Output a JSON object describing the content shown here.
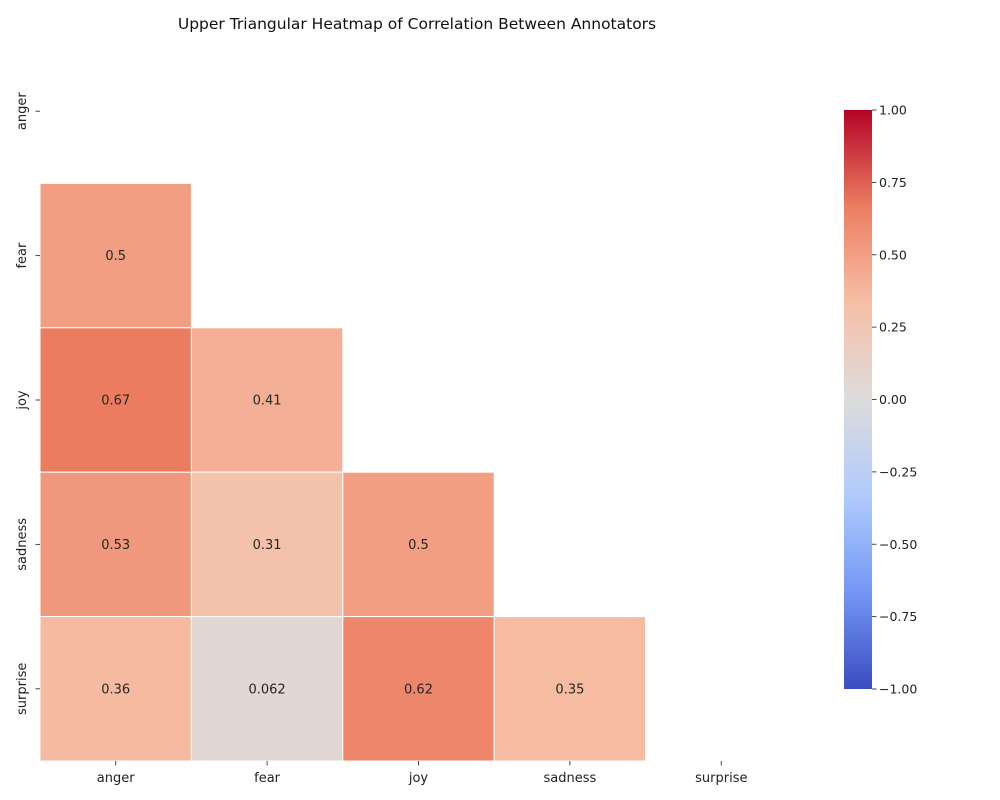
{
  "chart_data": {
    "type": "heatmap",
    "title": "Upper Triangular Heatmap of Correlation Between Annotators",
    "xlabel": "",
    "ylabel": "",
    "x_categories": [
      "anger",
      "fear",
      "joy",
      "sadness",
      "surprise"
    ],
    "y_categories": [
      "anger",
      "fear",
      "joy",
      "sadness",
      "surprise"
    ],
    "cells": [
      {
        "row": "fear",
        "col": "anger",
        "value": 0.5,
        "label": "0.5"
      },
      {
        "row": "joy",
        "col": "anger",
        "value": 0.67,
        "label": "0.67"
      },
      {
        "row": "joy",
        "col": "fear",
        "value": 0.41,
        "label": "0.41"
      },
      {
        "row": "sadness",
        "col": "anger",
        "value": 0.53,
        "label": "0.53"
      },
      {
        "row": "sadness",
        "col": "fear",
        "value": 0.31,
        "label": "0.31"
      },
      {
        "row": "sadness",
        "col": "joy",
        "value": 0.5,
        "label": "0.5"
      },
      {
        "row": "surprise",
        "col": "anger",
        "value": 0.36,
        "label": "0.36"
      },
      {
        "row": "surprise",
        "col": "fear",
        "value": 0.062,
        "label": "0.062"
      },
      {
        "row": "surprise",
        "col": "joy",
        "value": 0.62,
        "label": "0.62"
      },
      {
        "row": "surprise",
        "col": "sadness",
        "value": 0.35,
        "label": "0.35"
      }
    ],
    "colorbar": {
      "range": [
        -1,
        1
      ],
      "ticks": [
        "−1.00",
        "−0.75",
        "−0.50",
        "−0.25",
        "0.00",
        "0.25",
        "0.50",
        "0.75",
        "1.00"
      ],
      "tick_values": [
        -1,
        -0.75,
        -0.5,
        -0.25,
        0,
        0.25,
        0.5,
        0.75,
        1
      ],
      "colormap": "coolwarm",
      "colormap_stops": [
        "#3b4cc0",
        "#7396f5",
        "#b0cbfc",
        "#dddcdc",
        "#f6bfa6",
        "#ec7d60",
        "#b40426"
      ]
    },
    "grid": false,
    "legend": "colorbar-right"
  }
}
